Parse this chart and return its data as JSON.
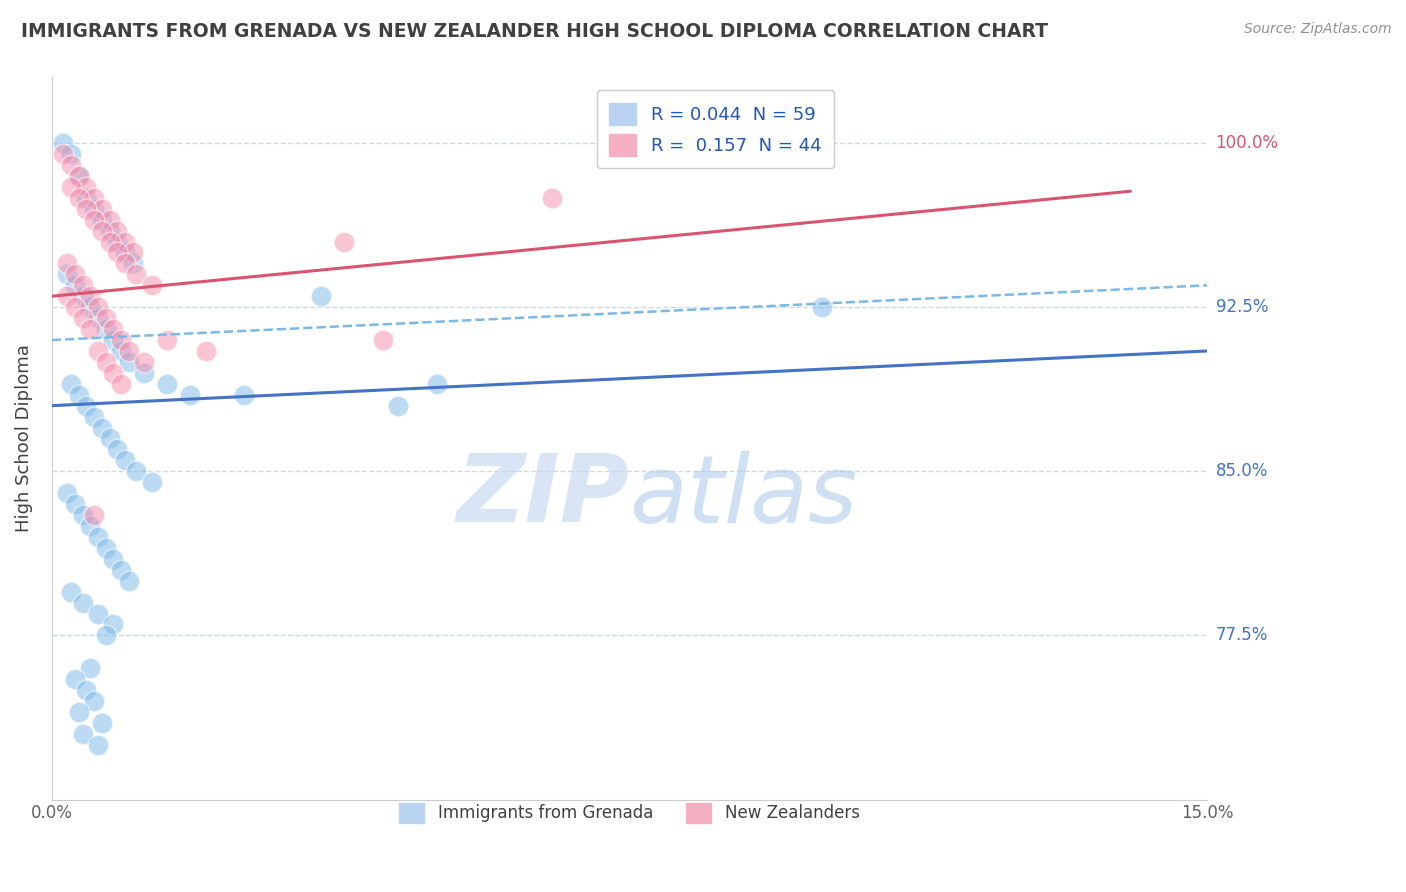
{
  "title": "IMMIGRANTS FROM GRENADA VS NEW ZEALANDER HIGH SCHOOL DIPLOMA CORRELATION CHART",
  "source": "Source: ZipAtlas.com",
  "ylabel": "High School Diploma",
  "xlim": [
    0.0,
    15.0
  ],
  "ylim": [
    70.0,
    103.0
  ],
  "yticks": [
    77.5,
    85.0,
    92.5,
    100.0
  ],
  "ytick_labels": [
    "77.5%",
    "85.0%",
    "92.5%",
    "100.0%"
  ],
  "blue_scatter_x": [
    0.15,
    0.25,
    0.35,
    0.45,
    0.55,
    0.65,
    0.75,
    0.85,
    0.95,
    1.05,
    0.2,
    0.3,
    0.4,
    0.5,
    0.6,
    0.7,
    0.8,
    0.9,
    1.0,
    1.2,
    0.25,
    0.35,
    0.45,
    0.55,
    0.65,
    0.75,
    0.85,
    0.95,
    1.1,
    1.3,
    0.2,
    0.3,
    0.4,
    0.5,
    0.6,
    0.7,
    0.8,
    0.9,
    1.0,
    1.5,
    0.25,
    2.5,
    5.0,
    4.5,
    0.4,
    0.6,
    0.8,
    3.5,
    0.7,
    0.5,
    0.3,
    0.45,
    0.55,
    0.35,
    0.65,
    1.8,
    0.4,
    0.6,
    10.0
  ],
  "blue_scatter_y": [
    100.0,
    99.5,
    98.5,
    97.5,
    97.0,
    96.5,
    96.0,
    95.5,
    95.0,
    94.5,
    94.0,
    93.5,
    93.0,
    92.5,
    92.0,
    91.5,
    91.0,
    90.5,
    90.0,
    89.5,
    89.0,
    88.5,
    88.0,
    87.5,
    87.0,
    86.5,
    86.0,
    85.5,
    85.0,
    84.5,
    84.0,
    83.5,
    83.0,
    82.5,
    82.0,
    81.5,
    81.0,
    80.5,
    80.0,
    89.0,
    79.5,
    88.5,
    89.0,
    88.0,
    79.0,
    78.5,
    78.0,
    93.0,
    77.5,
    76.0,
    75.5,
    75.0,
    74.5,
    74.0,
    73.5,
    88.5,
    73.0,
    72.5,
    92.5
  ],
  "pink_scatter_x": [
    0.15,
    0.25,
    0.35,
    0.45,
    0.55,
    0.65,
    0.75,
    0.85,
    0.95,
    1.05,
    0.2,
    0.3,
    0.4,
    0.5,
    0.6,
    0.7,
    0.8,
    0.9,
    1.0,
    1.2,
    0.25,
    0.35,
    0.45,
    0.55,
    0.65,
    0.75,
    0.85,
    0.95,
    1.1,
    1.3,
    0.2,
    0.3,
    0.4,
    0.5,
    3.8,
    4.3,
    0.6,
    0.7,
    0.8,
    0.9,
    1.5,
    2.0,
    0.55,
    6.5
  ],
  "pink_scatter_y": [
    99.5,
    99.0,
    98.5,
    98.0,
    97.5,
    97.0,
    96.5,
    96.0,
    95.5,
    95.0,
    94.5,
    94.0,
    93.5,
    93.0,
    92.5,
    92.0,
    91.5,
    91.0,
    90.5,
    90.0,
    98.0,
    97.5,
    97.0,
    96.5,
    96.0,
    95.5,
    95.0,
    94.5,
    94.0,
    93.5,
    93.0,
    92.5,
    92.0,
    91.5,
    95.5,
    91.0,
    90.5,
    90.0,
    89.5,
    89.0,
    91.0,
    90.5,
    83.0,
    97.5
  ],
  "blue_line_x": [
    0.0,
    15.0
  ],
  "blue_line_y": [
    88.0,
    90.5
  ],
  "pink_line_x": [
    0.0,
    14.0
  ],
  "pink_line_y": [
    93.0,
    97.8
  ],
  "dashed_line_x": [
    0.0,
    15.0
  ],
  "dashed_line_y": [
    91.0,
    93.5
  ],
  "blue_color": "#7ab8e8",
  "pink_color": "#f48aaa",
  "blue_line_color": "#4472c4",
  "pink_line_color": "#d9546e",
  "dashed_line_color": "#7ab8e8",
  "watermark_zip": "ZIP",
  "watermark_atlas": "atlas",
  "background_color": "#ffffff",
  "grid_color": "#d0d8e8",
  "title_color": "#404040",
  "right_label_color_blue": "#4472c4",
  "right_label_color_pink": "#d9546e"
}
